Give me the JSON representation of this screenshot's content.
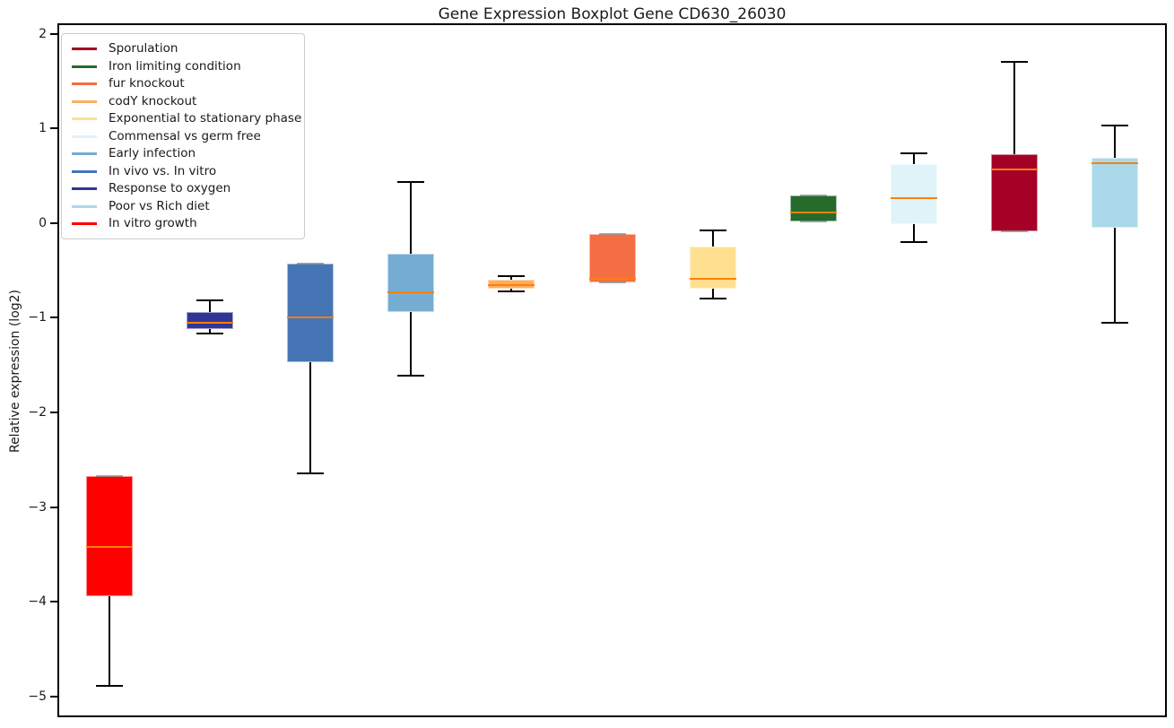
{
  "chart_data": {
    "type": "boxplot",
    "title": "Gene Expression Boxplot Gene CD630_26030",
    "xlabel": "",
    "ylabel": "Relative expression (log2)",
    "ylim": [
      -5.2,
      2.09
    ],
    "yticks": [
      2,
      1,
      0,
      -1,
      -2,
      -3,
      -4,
      -5
    ],
    "grid": false,
    "legend_position": "upper left",
    "median_color": "#ff7f0e",
    "frame_color": "#000000",
    "series": [
      {
        "name": "In vitro growth",
        "color": "#FF0000",
        "whisker_low": -4.89,
        "q1": -3.94,
        "median": -3.42,
        "q3": -2.67,
        "whisker_high": -2.67
      },
      {
        "name": "Response to oxygen",
        "color": "#313695",
        "whisker_low": -1.17,
        "q1": -1.12,
        "median": -1.05,
        "q3": -0.94,
        "whisker_high": -0.82
      },
      {
        "name": "In vivo vs. In vitro",
        "color": "#4575B4",
        "whisker_low": -2.64,
        "q1": -1.47,
        "median": -1.0,
        "q3": -0.43,
        "whisker_high": -0.43
      },
      {
        "name": "Early infection",
        "color": "#74ADD1",
        "whisker_low": -1.61,
        "q1": -0.94,
        "median": -0.73,
        "q3": -0.32,
        "whisker_high": 0.43
      },
      {
        "name": "codY knockout",
        "color": "#FDAE61",
        "whisker_low": -0.72,
        "q1": -0.69,
        "median": -0.66,
        "q3": -0.6,
        "whisker_high": -0.56
      },
      {
        "name": "fur knockout",
        "color": "#F46D43",
        "whisker_low": -0.63,
        "q1": -0.63,
        "median": -0.59,
        "q3": -0.12,
        "whisker_high": -0.12
      },
      {
        "name": "Exponential to stationary phase",
        "color": "#FEE090",
        "whisker_low": -0.8,
        "q1": -0.69,
        "median": -0.59,
        "q3": -0.25,
        "whisker_high": -0.08
      },
      {
        "name": "Iron limiting condition",
        "color": "#266B2B",
        "whisker_low": 0.02,
        "q1": 0.02,
        "median": 0.11,
        "q3": 0.29,
        "whisker_high": 0.29
      },
      {
        "name": "Commensal vs germ free",
        "color": "#E0F3F8",
        "whisker_low": -0.2,
        "q1": -0.01,
        "median": 0.26,
        "q3": 0.62,
        "whisker_high": 0.74
      },
      {
        "name": "Sporulation",
        "color": "#A50026",
        "whisker_low": -0.09,
        "q1": -0.09,
        "median": 0.57,
        "q3": 0.73,
        "whisker_high": 1.7
      },
      {
        "name": "Poor vs Rich diet",
        "color": "#ABD9E9",
        "whisker_low": -1.05,
        "q1": -0.05,
        "median": 0.63,
        "q3": 0.69,
        "whisker_high": 1.03
      }
    ],
    "legend": [
      {
        "label": "Sporulation",
        "color": "#A50026"
      },
      {
        "label": "Iron limiting condition",
        "color": "#266B2B"
      },
      {
        "label": "fur knockout",
        "color": "#F46D43"
      },
      {
        "label": "codY knockout",
        "color": "#FDAE61"
      },
      {
        "label": "Exponential to stationary phase",
        "color": "#FEE090"
      },
      {
        "label": "Commensal vs germ free",
        "color": "#E0F3F8"
      },
      {
        "label": "Early infection",
        "color": "#74ADD1"
      },
      {
        "label": "In vivo vs. In vitro",
        "color": "#4575B4"
      },
      {
        "label": "Response to oxygen",
        "color": "#313695"
      },
      {
        "label": "Poor vs Rich diet",
        "color": "#ABD9E9"
      },
      {
        "label": "In vitro growth",
        "color": "#FF0000"
      }
    ]
  }
}
